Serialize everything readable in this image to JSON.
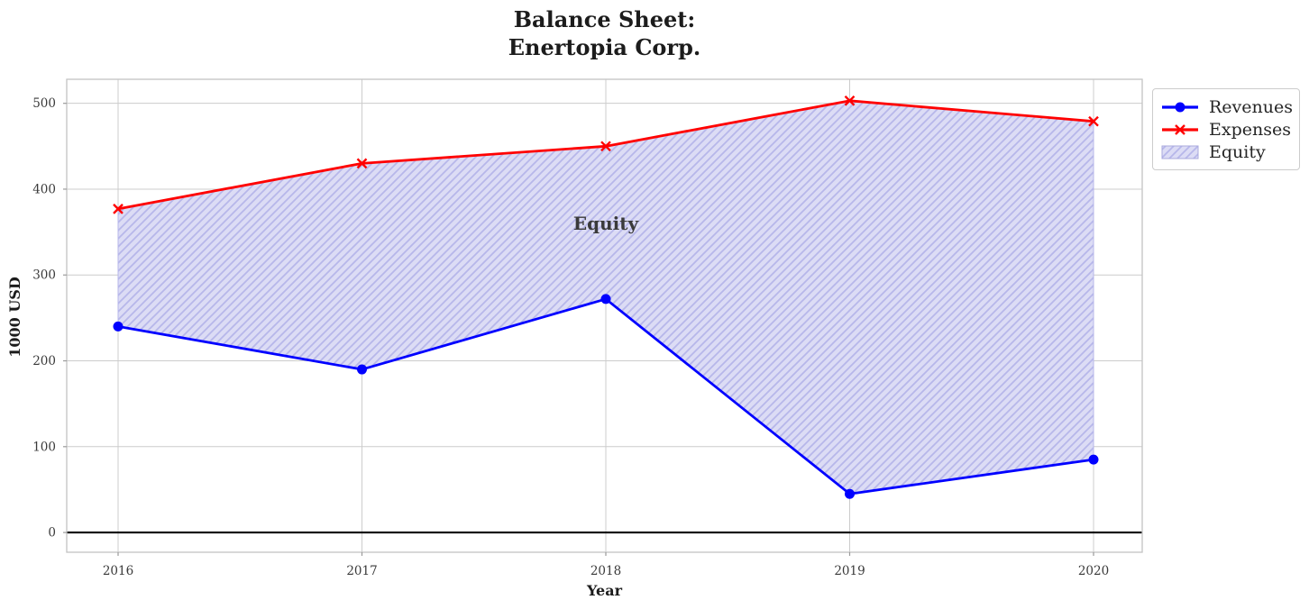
{
  "chart_data": {
    "type": "line",
    "title_lines": [
      "Balance Sheet:",
      "Enertopia Corp."
    ],
    "xlabel": "Year",
    "ylabel": "1000 USD",
    "x": [
      2016,
      2017,
      2018,
      2019,
      2020
    ],
    "series": [
      {
        "name": "Revenues",
        "color": "#0000ff",
        "marker": "circle",
        "values": [
          240,
          190,
          272,
          45,
          85
        ]
      },
      {
        "name": "Expenses",
        "color": "#ff0000",
        "marker": "x",
        "values": [
          377,
          430,
          450,
          503,
          479
        ]
      }
    ],
    "fill_between": {
      "name": "Equity",
      "upper": "Expenses",
      "lower": "Revenues",
      "facecolor": "#dcdcf5",
      "hatch_color": "#b7b7ea",
      "hatch": "/"
    },
    "annotation": {
      "text": "Equity",
      "x": 2018,
      "y": 360,
      "color": "#ff0000"
    },
    "yticks": [
      0,
      100,
      200,
      300,
      400,
      500
    ],
    "ylim": [
      -23,
      528
    ],
    "grid": true,
    "grid_color": "#cccccc",
    "zero_line": true,
    "zero_line_color": "#000000",
    "legend_position": "outside-upper-right"
  },
  "legend": {
    "items": [
      {
        "label": "Revenues"
      },
      {
        "label": "Expenses"
      },
      {
        "label": "Equity"
      }
    ]
  }
}
